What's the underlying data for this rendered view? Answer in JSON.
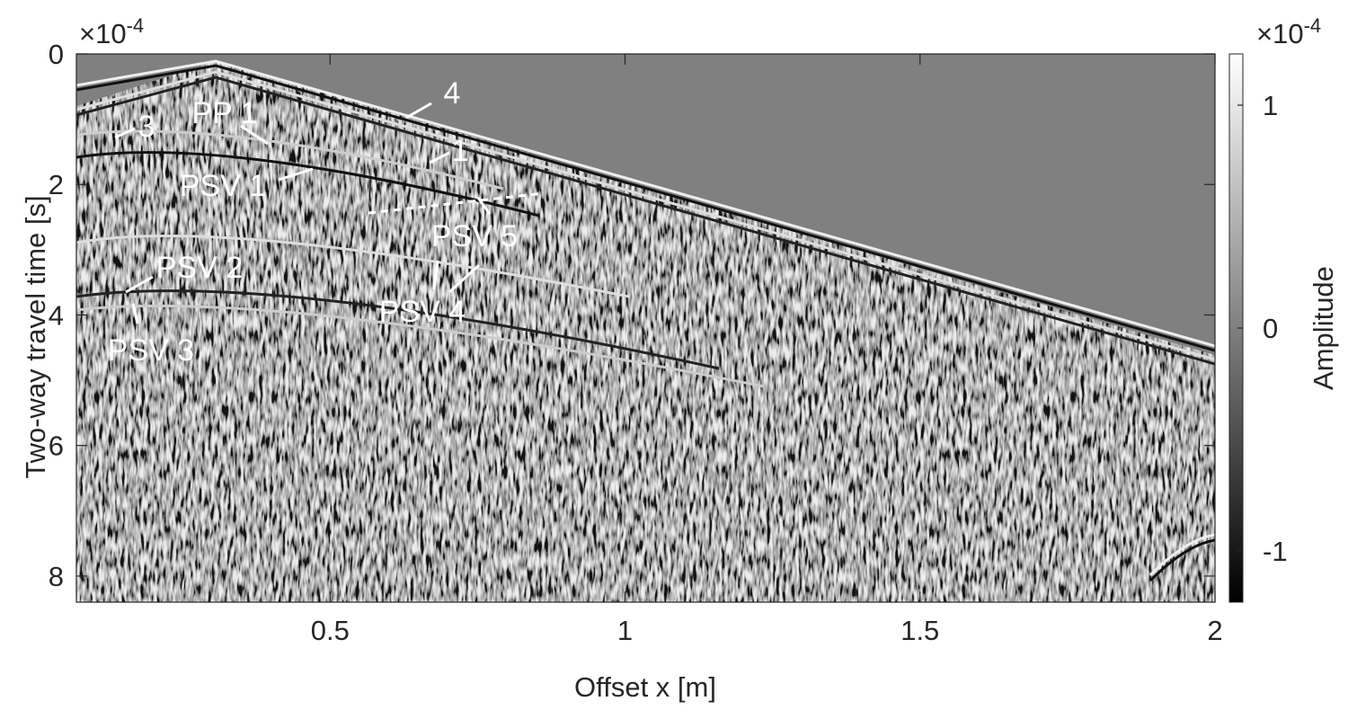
{
  "chart_data": {
    "type": "image",
    "xlabel": "Offset x [m]",
    "ylabel": "Two-way travel time [s]",
    "xlim": [
      0.07,
      2.0
    ],
    "xticks": [
      0.5,
      1,
      1.5,
      2
    ],
    "ylim": [
      0,
      8.4
    ],
    "yticks": [
      0,
      2,
      4,
      6,
      8
    ],
    "y_reversed": true,
    "y_multiplier": {
      "base": "×10",
      "exponent": "-4"
    },
    "colormap": "gray",
    "colorbar": {
      "label": "Amplitude",
      "clim": [
        -1.23,
        1.23
      ],
      "ticks": [
        -1,
        0,
        1
      ],
      "multiplier": {
        "base": "×10",
        "exponent": "-4"
      }
    },
    "annotations": [
      "3",
      "PP 1",
      "4",
      "1",
      "PSV 1",
      "PSV 5",
      "PSV 2",
      "PSV 4",
      "PSV 3"
    ]
  }
}
